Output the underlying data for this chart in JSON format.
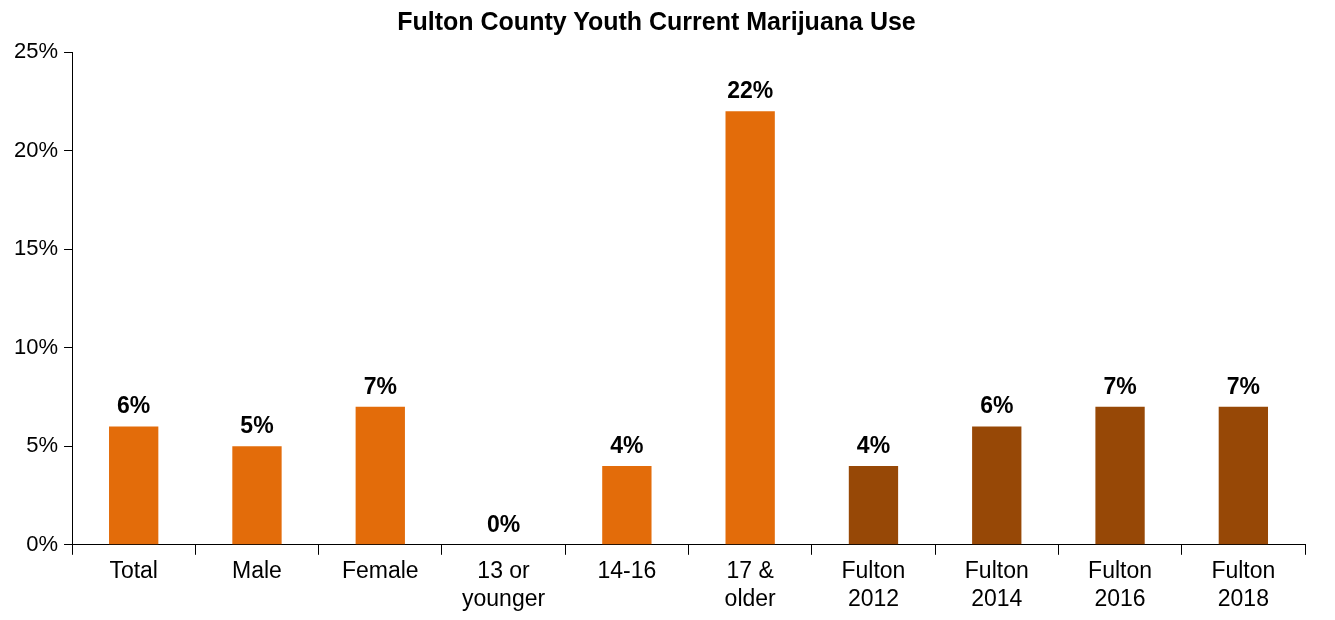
{
  "chart_data": {
    "type": "bar",
    "title": "Fulton County Youth Current Marijuana Use",
    "categories": [
      "Total",
      "Male",
      "Female",
      "13 or younger",
      "14-16",
      "17 & older",
      "Fulton 2012",
      "Fulton 2014",
      "Fulton 2016",
      "Fulton 2018"
    ],
    "values": [
      6,
      5,
      7,
      0,
      4,
      22,
      4,
      6,
      7,
      7
    ],
    "colors": [
      "#e36c0a",
      "#e36c0a",
      "#e36c0a",
      "#e36c0a",
      "#e36c0a",
      "#e36c0a",
      "#974806",
      "#974806",
      "#974806",
      "#974806"
    ],
    "value_labels": [
      "6%",
      "5%",
      "7%",
      "0%",
      "4%",
      "22%",
      "4%",
      "6%",
      "7%",
      "7%"
    ],
    "ylim": [
      0,
      25
    ],
    "yticks": [
      {
        "value": 0,
        "label": "0%"
      },
      {
        "value": 5,
        "label": "5%"
      },
      {
        "value": 10,
        "label": "10%"
      },
      {
        "value": 15,
        "label": "15%"
      },
      {
        "value": 20,
        "label": "20%"
      },
      {
        "value": 25,
        "label": "25%"
      }
    ],
    "grid": false,
    "legend": false
  }
}
